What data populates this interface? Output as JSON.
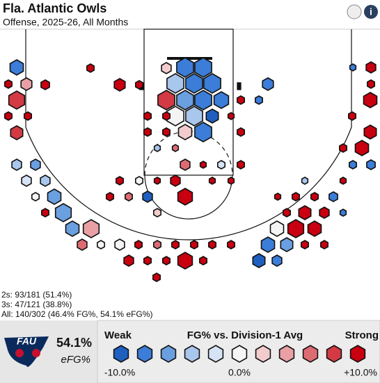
{
  "header": {
    "title": "Fla. Atlantic Owls",
    "subtitle": "Offense, 2025-26, All Months"
  },
  "stats": [
    "2s: 93/181 (51.4%)",
    "3s: 47/121 (38.8%)",
    "All: 140/302 (46.4% FG%, 54.1% eFG%)"
  ],
  "summary": {
    "logo": "FAU",
    "value": "54.1%",
    "label": "eFG%"
  },
  "legend": {
    "weak": "Weak",
    "title": "FG% vs. Division-1 Avg",
    "strong": "Strong",
    "ticks": [
      "-10.0%",
      "0.0%",
      "+10.0%"
    ]
  }
}
